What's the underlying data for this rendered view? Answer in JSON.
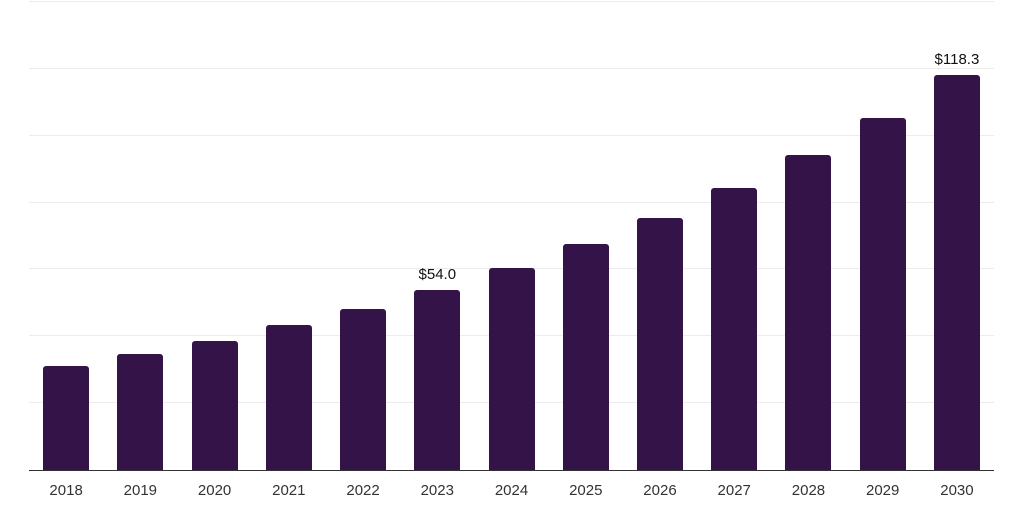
{
  "chart_data": {
    "type": "bar",
    "title": "",
    "xlabel": "",
    "ylabel": "",
    "categories": [
      "2018",
      "2019",
      "2020",
      "2021",
      "2022",
      "2023",
      "2024",
      "2025",
      "2026",
      "2027",
      "2028",
      "2029",
      "2030"
    ],
    "values": [
      31.0,
      34.7,
      38.7,
      43.3,
      48.3,
      54.0,
      60.4,
      67.5,
      75.4,
      84.3,
      94.3,
      105.4,
      118.3
    ],
    "value_labels": [
      null,
      null,
      null,
      null,
      null,
      "$54.0",
      null,
      null,
      null,
      null,
      null,
      null,
      "$118.3"
    ],
    "ylim": [
      0,
      140
    ],
    "gridline_step": 20,
    "grid": "horizontal",
    "legend": "none",
    "colors": {
      "bar": "#341349",
      "gridline": "#ececec",
      "axis_line": "#333333",
      "tick_label": "#333333",
      "value_label": "#111111",
      "background": "#ffffff"
    }
  }
}
